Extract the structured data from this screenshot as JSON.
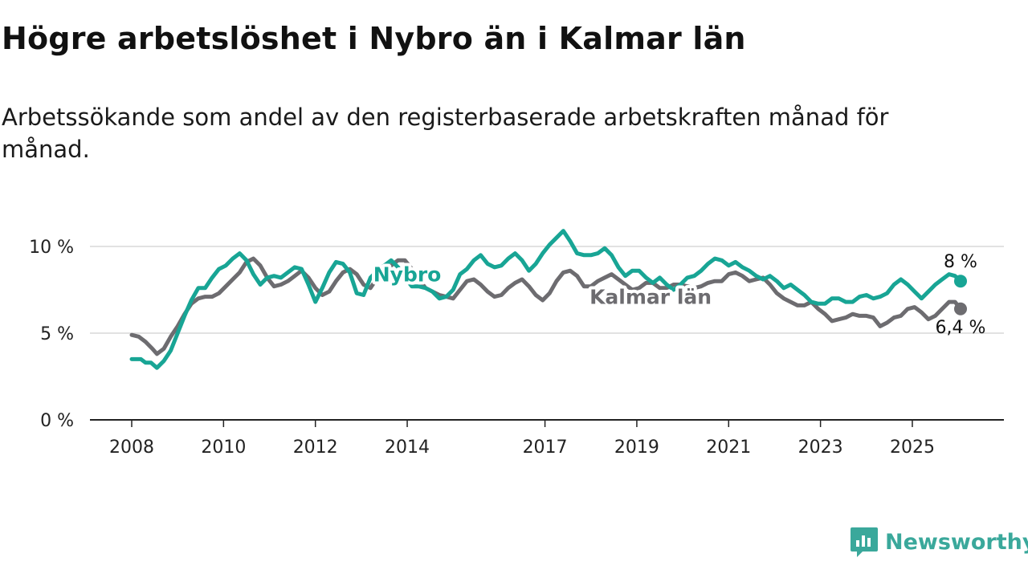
{
  "title": "Högre arbetslöshet i Nybro än i Kalmar län",
  "subtitle": "Arbetssökande som andel av den registerbaserade arbetskraften månad för månad.",
  "brand": {
    "name": "Newsworthy",
    "icon": "newsworthy-logo-icon",
    "color": "#3aa89b"
  },
  "chart_data": {
    "type": "line",
    "title": "Högre arbetslöshet i Nybro än i Kalmar län",
    "subtitle": "Arbetssökande som andel av den registerbaserade arbetskraften månad för månad.",
    "xlabel": "",
    "ylabel": "",
    "xlim": [
      2008,
      2026.1
    ],
    "ylim": [
      0,
      11
    ],
    "x_ticks": [
      2008,
      2010,
      2012,
      2014,
      2017,
      2019,
      2021,
      2023,
      2025
    ],
    "x_tick_labels": [
      "2008",
      "2010",
      "2012",
      "2014",
      "2017",
      "2019",
      "2021",
      "2023",
      "2025"
    ],
    "y_ticks": [
      0,
      5,
      10
    ],
    "y_tick_labels": [
      "0 %",
      "5 %",
      "10 %"
    ],
    "grid": "horizontal",
    "series": [
      {
        "name": "Kalmar län",
        "color": "#6d6c70",
        "end_label": "6,4 %",
        "points": [
          [
            2008.0,
            4.9
          ],
          [
            2008.15,
            4.8
          ],
          [
            2008.3,
            4.5
          ],
          [
            2008.45,
            4.1
          ],
          [
            2008.55,
            3.8
          ],
          [
            2008.7,
            4.1
          ],
          [
            2008.85,
            4.8
          ],
          [
            2009.0,
            5.4
          ],
          [
            2009.15,
            6.1
          ],
          [
            2009.3,
            6.7
          ],
          [
            2009.45,
            7.0
          ],
          [
            2009.6,
            7.1
          ],
          [
            2009.75,
            7.1
          ],
          [
            2009.9,
            7.3
          ],
          [
            2010.05,
            7.7
          ],
          [
            2010.2,
            8.1
          ],
          [
            2010.35,
            8.5
          ],
          [
            2010.5,
            9.1
          ],
          [
            2010.65,
            9.3
          ],
          [
            2010.8,
            8.9
          ],
          [
            2010.95,
            8.2
          ],
          [
            2011.1,
            7.7
          ],
          [
            2011.25,
            7.8
          ],
          [
            2011.4,
            8.0
          ],
          [
            2011.55,
            8.3
          ],
          [
            2011.7,
            8.6
          ],
          [
            2011.85,
            8.2
          ],
          [
            2012.0,
            7.6
          ],
          [
            2012.15,
            7.2
          ],
          [
            2012.3,
            7.4
          ],
          [
            2012.45,
            8.0
          ],
          [
            2012.6,
            8.5
          ],
          [
            2012.75,
            8.7
          ],
          [
            2012.9,
            8.4
          ],
          [
            2013.05,
            7.8
          ],
          [
            2013.2,
            7.6
          ],
          [
            2013.35,
            8.2
          ],
          [
            2013.5,
            8.6
          ],
          [
            2013.65,
            8.9
          ],
          [
            2013.8,
            9.2
          ],
          [
            2013.95,
            9.2
          ],
          [
            2014.1,
            8.7
          ],
          [
            2014.25,
            8.1
          ],
          [
            2014.4,
            7.6
          ],
          [
            2014.55,
            7.4
          ],
          [
            2014.7,
            7.2
          ],
          [
            2014.85,
            7.1
          ],
          [
            2015.0,
            7.0
          ],
          [
            2015.15,
            7.5
          ],
          [
            2015.3,
            8.0
          ],
          [
            2015.45,
            8.1
          ],
          [
            2015.6,
            7.8
          ],
          [
            2015.75,
            7.4
          ],
          [
            2015.9,
            7.1
          ],
          [
            2016.05,
            7.2
          ],
          [
            2016.2,
            7.6
          ],
          [
            2016.35,
            7.9
          ],
          [
            2016.5,
            8.1
          ],
          [
            2016.65,
            7.7
          ],
          [
            2016.8,
            7.2
          ],
          [
            2016.95,
            6.9
          ],
          [
            2017.1,
            7.3
          ],
          [
            2017.25,
            8.0
          ],
          [
            2017.4,
            8.5
          ],
          [
            2017.55,
            8.6
          ],
          [
            2017.7,
            8.3
          ],
          [
            2017.85,
            7.7
          ],
          [
            2018.0,
            7.7
          ],
          [
            2018.15,
            8.0
          ],
          [
            2018.3,
            8.2
          ],
          [
            2018.45,
            8.4
          ],
          [
            2018.6,
            8.1
          ],
          [
            2018.75,
            7.8
          ],
          [
            2018.9,
            7.5
          ],
          [
            2019.05,
            7.6
          ],
          [
            2019.2,
            7.9
          ],
          [
            2019.35,
            7.9
          ],
          [
            2019.5,
            7.6
          ],
          [
            2019.65,
            7.6
          ],
          [
            2019.8,
            7.8
          ],
          [
            2019.95,
            7.8
          ],
          [
            2020.1,
            7.7
          ],
          [
            2020.25,
            7.6
          ],
          [
            2020.4,
            7.7
          ],
          [
            2020.55,
            7.9
          ],
          [
            2020.7,
            8.0
          ],
          [
            2020.85,
            8.0
          ],
          [
            2021.0,
            8.4
          ],
          [
            2021.15,
            8.5
          ],
          [
            2021.3,
            8.3
          ],
          [
            2021.45,
            8.0
          ],
          [
            2021.6,
            8.1
          ],
          [
            2021.75,
            8.2
          ],
          [
            2021.9,
            7.8
          ],
          [
            2022.05,
            7.3
          ],
          [
            2022.2,
            7.0
          ],
          [
            2022.35,
            6.8
          ],
          [
            2022.5,
            6.6
          ],
          [
            2022.65,
            6.6
          ],
          [
            2022.8,
            6.8
          ],
          [
            2022.95,
            6.4
          ],
          [
            2023.1,
            6.1
          ],
          [
            2023.25,
            5.7
          ],
          [
            2023.4,
            5.8
          ],
          [
            2023.55,
            5.9
          ],
          [
            2023.7,
            6.1
          ],
          [
            2023.85,
            6.0
          ],
          [
            2024.0,
            6.0
          ],
          [
            2024.15,
            5.9
          ],
          [
            2024.3,
            5.4
          ],
          [
            2024.45,
            5.6
          ],
          [
            2024.6,
            5.9
          ],
          [
            2024.75,
            6.0
          ],
          [
            2024.9,
            6.4
          ],
          [
            2025.05,
            6.5
          ],
          [
            2025.2,
            6.2
          ],
          [
            2025.35,
            5.8
          ],
          [
            2025.5,
            6.0
          ],
          [
            2025.65,
            6.4
          ],
          [
            2025.8,
            6.8
          ],
          [
            2025.93,
            6.8
          ],
          [
            2026.05,
            6.4
          ]
        ]
      },
      {
        "name": "Nybro",
        "color": "#18a595",
        "end_label": "8 %",
        "points": [
          [
            2008.0,
            3.5
          ],
          [
            2008.2,
            3.5
          ],
          [
            2008.3,
            3.3
          ],
          [
            2008.42,
            3.3
          ],
          [
            2008.55,
            3.0
          ],
          [
            2008.7,
            3.4
          ],
          [
            2008.85,
            4.0
          ],
          [
            2009.0,
            5.0
          ],
          [
            2009.15,
            6.0
          ],
          [
            2009.3,
            6.9
          ],
          [
            2009.45,
            7.6
          ],
          [
            2009.6,
            7.6
          ],
          [
            2009.75,
            8.2
          ],
          [
            2009.9,
            8.7
          ],
          [
            2010.05,
            8.9
          ],
          [
            2010.2,
            9.3
          ],
          [
            2010.35,
            9.6
          ],
          [
            2010.5,
            9.2
          ],
          [
            2010.65,
            8.4
          ],
          [
            2010.8,
            7.8
          ],
          [
            2010.95,
            8.2
          ],
          [
            2011.1,
            8.3
          ],
          [
            2011.25,
            8.2
          ],
          [
            2011.4,
            8.5
          ],
          [
            2011.55,
            8.8
          ],
          [
            2011.7,
            8.7
          ],
          [
            2011.85,
            7.8
          ],
          [
            2012.0,
            6.8
          ],
          [
            2012.15,
            7.6
          ],
          [
            2012.3,
            8.5
          ],
          [
            2012.45,
            9.1
          ],
          [
            2012.6,
            9.0
          ],
          [
            2012.75,
            8.5
          ],
          [
            2012.9,
            7.3
          ],
          [
            2013.05,
            7.2
          ],
          [
            2013.2,
            8.2
          ],
          [
            2013.35,
            8.6
          ],
          [
            2013.5,
            8.9
          ],
          [
            2013.65,
            9.2
          ],
          [
            2013.8,
            8.8
          ],
          [
            2013.95,
            8.2
          ],
          [
            2014.1,
            7.7
          ],
          [
            2014.25,
            7.7
          ],
          [
            2014.4,
            7.6
          ],
          [
            2014.55,
            7.4
          ],
          [
            2014.7,
            7.0
          ],
          [
            2014.85,
            7.1
          ],
          [
            2015.0,
            7.5
          ],
          [
            2015.15,
            8.4
          ],
          [
            2015.3,
            8.7
          ],
          [
            2015.45,
            9.2
          ],
          [
            2015.6,
            9.5
          ],
          [
            2015.75,
            9.0
          ],
          [
            2015.9,
            8.8
          ],
          [
            2016.05,
            8.9
          ],
          [
            2016.2,
            9.3
          ],
          [
            2016.35,
            9.6
          ],
          [
            2016.5,
            9.2
          ],
          [
            2016.65,
            8.6
          ],
          [
            2016.8,
            9.0
          ],
          [
            2016.95,
            9.6
          ],
          [
            2017.1,
            10.1
          ],
          [
            2017.25,
            10.5
          ],
          [
            2017.4,
            10.9
          ],
          [
            2017.55,
            10.3
          ],
          [
            2017.7,
            9.6
          ],
          [
            2017.85,
            9.5
          ],
          [
            2018.0,
            9.5
          ],
          [
            2018.15,
            9.6
          ],
          [
            2018.3,
            9.9
          ],
          [
            2018.45,
            9.5
          ],
          [
            2018.6,
            8.8
          ],
          [
            2018.75,
            8.3
          ],
          [
            2018.9,
            8.6
          ],
          [
            2019.05,
            8.6
          ],
          [
            2019.2,
            8.2
          ],
          [
            2019.35,
            7.9
          ],
          [
            2019.5,
            8.2
          ],
          [
            2019.65,
            7.8
          ],
          [
            2019.8,
            7.5
          ],
          [
            2019.95,
            7.8
          ],
          [
            2020.1,
            8.2
          ],
          [
            2020.25,
            8.3
          ],
          [
            2020.4,
            8.6
          ],
          [
            2020.55,
            9.0
          ],
          [
            2020.7,
            9.3
          ],
          [
            2020.85,
            9.2
          ],
          [
            2021.0,
            8.9
          ],
          [
            2021.15,
            9.1
          ],
          [
            2021.3,
            8.8
          ],
          [
            2021.45,
            8.6
          ],
          [
            2021.6,
            8.3
          ],
          [
            2021.75,
            8.1
          ],
          [
            2021.9,
            8.3
          ],
          [
            2022.05,
            8.0
          ],
          [
            2022.2,
            7.6
          ],
          [
            2022.35,
            7.8
          ],
          [
            2022.5,
            7.5
          ],
          [
            2022.65,
            7.2
          ],
          [
            2022.8,
            6.8
          ],
          [
            2022.95,
            6.7
          ],
          [
            2023.1,
            6.7
          ],
          [
            2023.25,
            7.0
          ],
          [
            2023.4,
            7.0
          ],
          [
            2023.55,
            6.8
          ],
          [
            2023.7,
            6.8
          ],
          [
            2023.85,
            7.1
          ],
          [
            2024.0,
            7.2
          ],
          [
            2024.15,
            7.0
          ],
          [
            2024.3,
            7.1
          ],
          [
            2024.45,
            7.3
          ],
          [
            2024.6,
            7.8
          ],
          [
            2024.75,
            8.1
          ],
          [
            2024.9,
            7.8
          ],
          [
            2025.05,
            7.4
          ],
          [
            2025.2,
            7.0
          ],
          [
            2025.35,
            7.4
          ],
          [
            2025.5,
            7.8
          ],
          [
            2025.65,
            8.1
          ],
          [
            2025.8,
            8.4
          ],
          [
            2025.93,
            8.3
          ],
          [
            2026.05,
            8.0
          ]
        ]
      }
    ],
    "annotations": [
      {
        "text": "Nybro",
        "series": "Nybro",
        "x": 2014.0,
        "y": 8.4
      },
      {
        "text": "Kalmar län",
        "series": "Kalmar län",
        "x": 2019.3,
        "y": 7.1
      },
      {
        "text": "8 %",
        "series": "Nybro",
        "x": 2026.05,
        "y": 8.0
      },
      {
        "text": "6,4 %",
        "series": "Kalmar län",
        "x": 2026.05,
        "y": 6.4
      }
    ]
  }
}
